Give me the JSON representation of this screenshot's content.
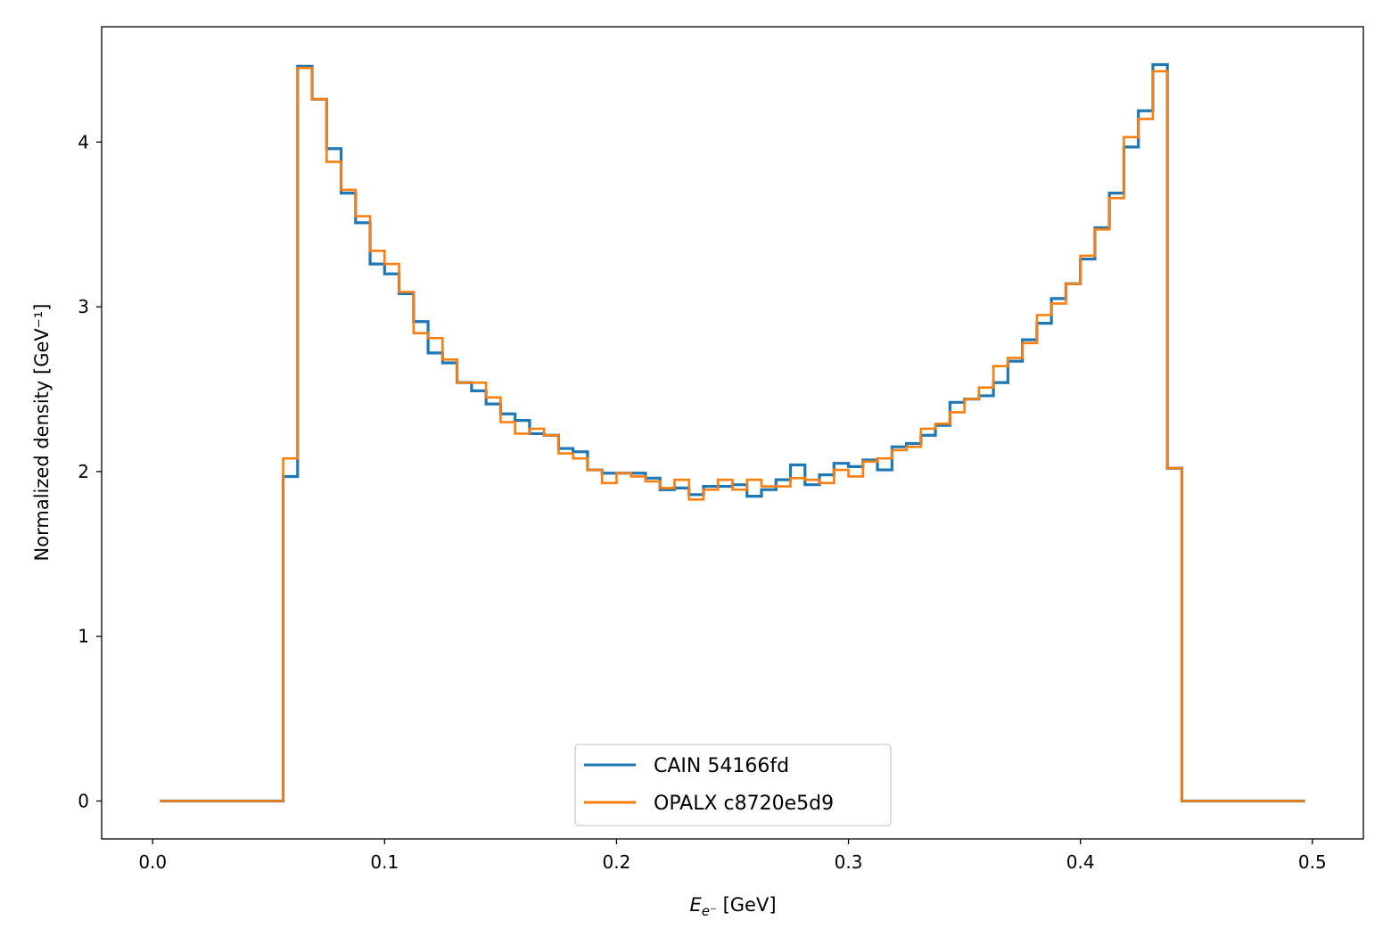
{
  "chart_data": {
    "type": "line",
    "style": "step-histogram",
    "title": "",
    "xlabel": "E_e⁻ [GeV]",
    "xlabel_parts": {
      "main": "E",
      "sub": "e⁻",
      "rest": " [GeV]"
    },
    "ylabel": "Normalized density [GeV⁻¹]",
    "xlim": [
      -0.022,
      0.522
    ],
    "ylim": [
      -0.23,
      4.7
    ],
    "xticks": [
      0.0,
      0.1,
      0.2,
      0.3,
      0.4,
      0.5
    ],
    "xtick_labels": [
      "0.0",
      "0.1",
      "0.2",
      "0.3",
      "0.4",
      "0.5"
    ],
    "yticks": [
      0,
      1,
      2,
      3,
      4
    ],
    "ytick_labels": [
      "0",
      "1",
      "2",
      "3",
      "4"
    ],
    "grid": false,
    "legend_position": "bottom-center",
    "bin_range": [
      0.0,
      0.5
    ],
    "bin_count": 80,
    "series": [
      {
        "name": "CAIN 54166fd",
        "color": "#1f77b4",
        "values": [
          0,
          0,
          0,
          0,
          0,
          0,
          0,
          0,
          0,
          1.97,
          4.46,
          4.26,
          3.96,
          3.69,
          3.51,
          3.26,
          3.2,
          3.08,
          2.91,
          2.72,
          2.66,
          2.54,
          2.49,
          2.41,
          2.35,
          2.31,
          2.23,
          2.22,
          2.14,
          2.12,
          2.01,
          1.99,
          1.99,
          1.99,
          1.96,
          1.89,
          1.9,
          1.86,
          1.91,
          1.91,
          1.92,
          1.85,
          1.89,
          1.95,
          2.04,
          1.92,
          1.98,
          2.05,
          2.03,
          2.07,
          2.01,
          2.15,
          2.17,
          2.22,
          2.28,
          2.42,
          2.44,
          2.46,
          2.54,
          2.67,
          2.8,
          2.9,
          3.05,
          3.14,
          3.29,
          3.48,
          3.69,
          3.97,
          4.19,
          4.47,
          2.02,
          0,
          0,
          0,
          0,
          0,
          0,
          0,
          0,
          0
        ]
      },
      {
        "name": "OPALX c8720e5d9",
        "color": "#ff7f0e",
        "values": [
          0,
          0,
          0,
          0,
          0,
          0,
          0,
          0,
          0,
          2.08,
          4.45,
          4.26,
          3.88,
          3.71,
          3.55,
          3.34,
          3.26,
          3.09,
          2.84,
          2.81,
          2.68,
          2.54,
          2.54,
          2.45,
          2.3,
          2.23,
          2.26,
          2.22,
          2.11,
          2.08,
          2.01,
          1.93,
          1.99,
          1.97,
          1.94,
          1.9,
          1.95,
          1.83,
          1.89,
          1.95,
          1.89,
          1.95,
          1.91,
          1.91,
          1.96,
          1.95,
          1.93,
          2.01,
          1.97,
          2.06,
          2.08,
          2.13,
          2.15,
          2.26,
          2.29,
          2.36,
          2.44,
          2.51,
          2.64,
          2.69,
          2.78,
          2.95,
          3.02,
          3.14,
          3.31,
          3.47,
          3.66,
          4.03,
          4.14,
          4.43,
          2.02,
          0,
          0,
          0,
          0,
          0,
          0,
          0,
          0,
          0
        ]
      }
    ]
  }
}
